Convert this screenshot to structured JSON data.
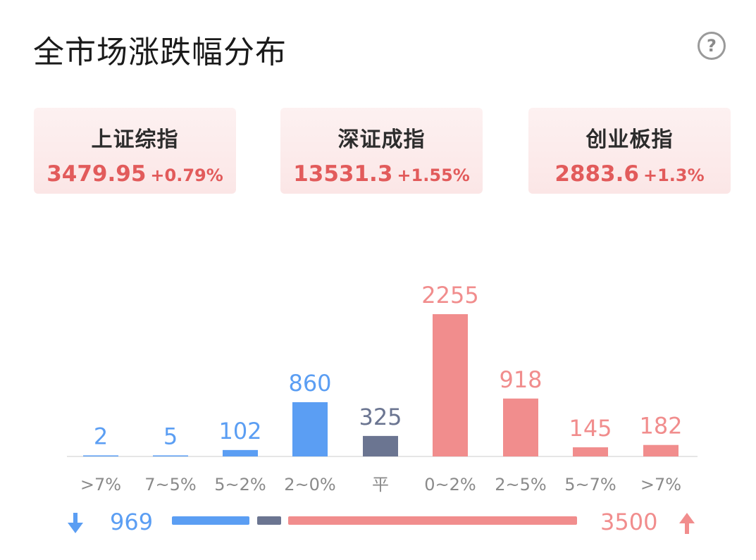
{
  "header": {
    "title": "全市场涨跌幅分布",
    "help_icon": "question-circle-icon",
    "help_glyph": "?"
  },
  "indices": [
    {
      "name": "上证综指",
      "value": "3479.95",
      "change": "+0.79%"
    },
    {
      "name": "深证成指",
      "value": "13531.3",
      "change": "+1.55%"
    },
    {
      "name": "创业板指",
      "value": "2883.6",
      "change": "+1.3%"
    }
  ],
  "colors": {
    "fall": "#5b9ef3",
    "flat": "#6b7591",
    "rise": "#f18d8d",
    "index_text": "#e25b5b"
  },
  "chart_data": {
    "type": "bar",
    "categories": [
      ">7%",
      "7~5%",
      "5~2%",
      "2~0%",
      "平",
      "0~2%",
      "2~5%",
      "5~7%",
      ">7%"
    ],
    "values": [
      2,
      5,
      102,
      860,
      325,
      2255,
      918,
      145,
      182
    ],
    "groups": [
      "fall",
      "fall",
      "fall",
      "fall",
      "flat",
      "rise",
      "rise",
      "rise",
      "rise"
    ],
    "grid": false
  },
  "summary": {
    "fall_count": "969",
    "rise_count": "3500",
    "down_icon": "arrow-down-icon",
    "up_icon": "arrow-up-icon"
  }
}
